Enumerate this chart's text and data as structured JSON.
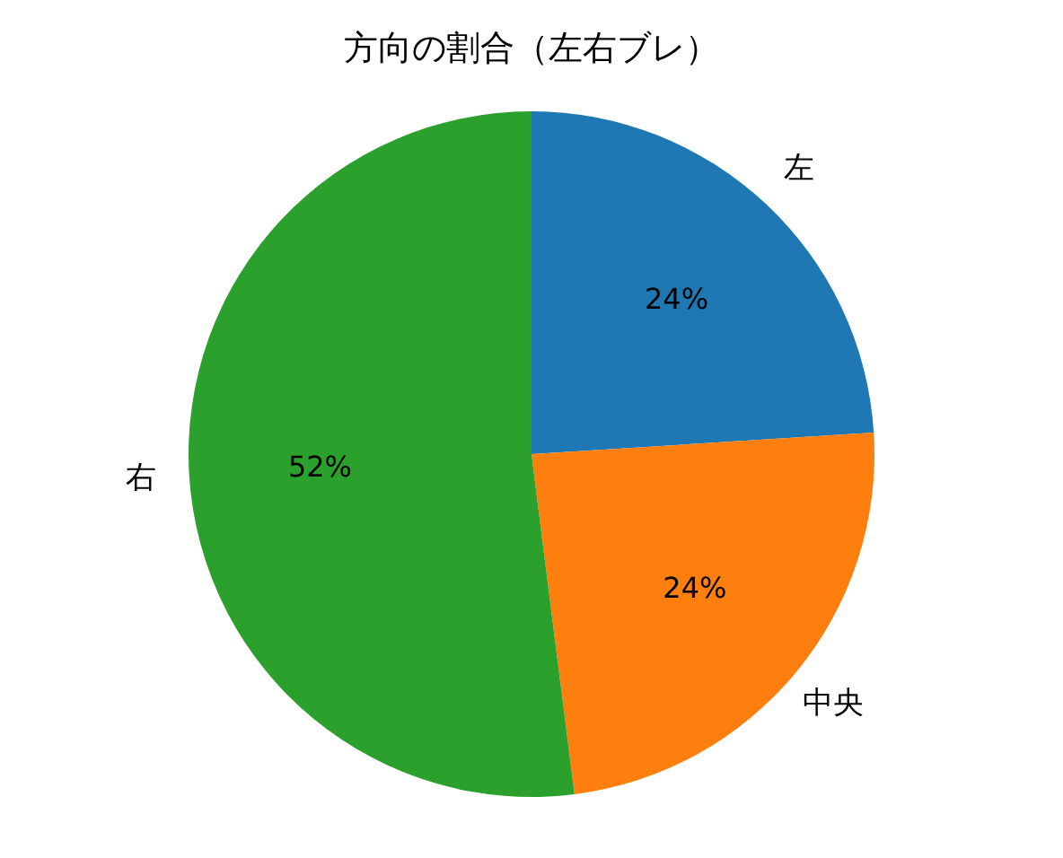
{
  "chart_data": {
    "type": "pie",
    "title": "方向の割合（左右ブレ）",
    "categories": [
      "左",
      "中央",
      "右"
    ],
    "values": [
      24,
      24,
      52
    ],
    "colors": [
      "#1f77b4",
      "#ff7f0e",
      "#2ca02c"
    ],
    "value_labels": [
      "24%",
      "24%",
      "52%"
    ]
  }
}
